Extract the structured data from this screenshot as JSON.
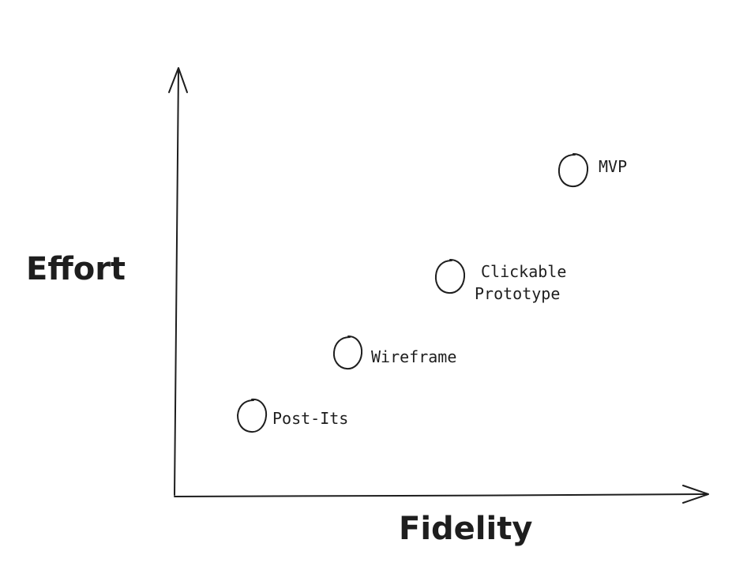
{
  "axes": {
    "x_label": "Fidelity",
    "y_label": "Effort"
  },
  "points": [
    {
      "lines": [
        "Post-Its"
      ]
    },
    {
      "lines": [
        "Wireframe"
      ]
    },
    {
      "lines": [
        "Clickable",
        "Prototype"
      ]
    },
    {
      "lines": [
        "MVP"
      ]
    }
  ]
}
